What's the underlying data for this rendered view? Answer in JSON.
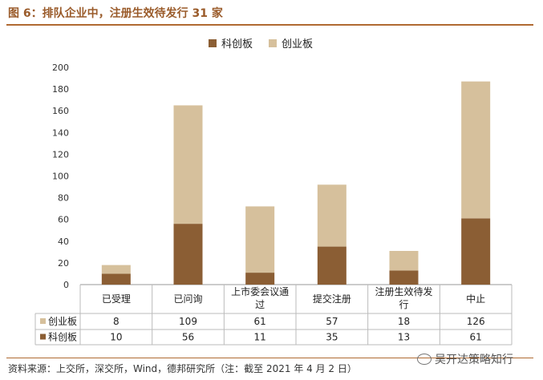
{
  "title": "图 6：排队企业中，注册生效待发行 31 家",
  "source": "资料来源：上交所，深交所，Wind，德邦研究所（注：截至 2021 年 4 月 2 日）",
  "watermark": "吴开达策略知行",
  "colors": {
    "kcb": "#8b5e34",
    "cyb": "#d6c09c",
    "rule": "#b06a32"
  },
  "chart_data": {
    "type": "bar",
    "stacked": true,
    "categories": [
      [
        "已受理"
      ],
      [
        "已问询"
      ],
      [
        "上市委会议通",
        "过"
      ],
      [
        "提交注册"
      ],
      [
        "注册生效待发",
        "行"
      ],
      [
        "中止"
      ]
    ],
    "series": [
      {
        "name": "科创板",
        "values": [
          10,
          56,
          11,
          35,
          13,
          61
        ]
      },
      {
        "name": "创业板",
        "values": [
          8,
          109,
          61,
          57,
          18,
          126
        ]
      }
    ],
    "ylim": [
      0,
      200
    ],
    "yticks": [
      0,
      20,
      40,
      60,
      80,
      100,
      120,
      140,
      160,
      180,
      200
    ],
    "table_rows": [
      "创业板",
      "科创板"
    ],
    "legend": "top-center",
    "grid": false
  }
}
